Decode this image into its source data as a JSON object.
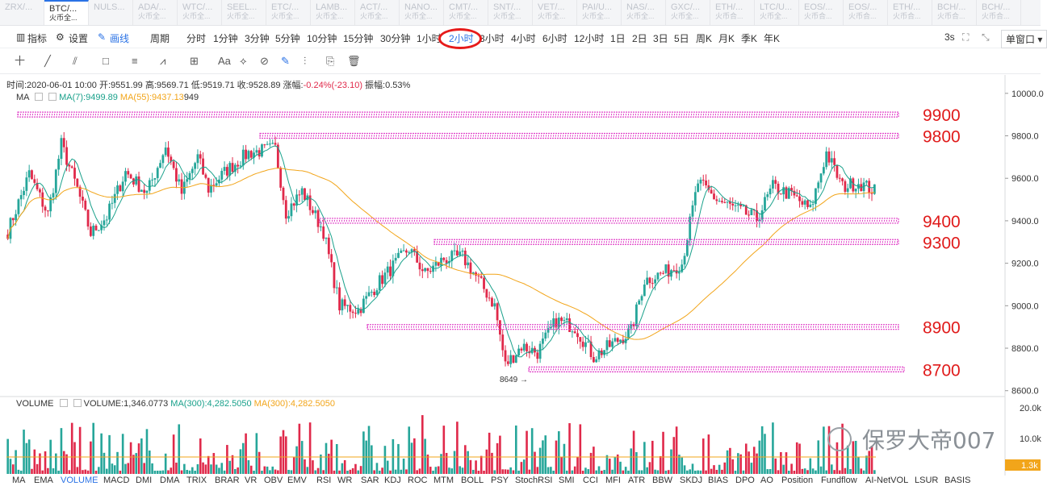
{
  "tickers": [
    {
      "name": "ZRX/...",
      "sub": ""
    },
    {
      "name": "BTC/...",
      "sub": "火币全..."
    },
    {
      "name": "NULS...",
      "sub": ""
    },
    {
      "name": "ADA/...",
      "sub": "火币全..."
    },
    {
      "name": "WTC/...",
      "sub": "火币全..."
    },
    {
      "name": "SEEL...",
      "sub": "火币全..."
    },
    {
      "name": "ETC/...",
      "sub": "火币全..."
    },
    {
      "name": "LAMB...",
      "sub": "火币全..."
    },
    {
      "name": "ACT/...",
      "sub": "火币全..."
    },
    {
      "name": "NANO...",
      "sub": "火币全..."
    },
    {
      "name": "CMT/...",
      "sub": "火币全..."
    },
    {
      "name": "SNT/...",
      "sub": "火币全..."
    },
    {
      "name": "VET/...",
      "sub": "火币全..."
    },
    {
      "name": "PAI/U...",
      "sub": "火币全..."
    },
    {
      "name": "NAS/...",
      "sub": "火币全..."
    },
    {
      "name": "GXC/...",
      "sub": "火币全..."
    },
    {
      "name": "ETH/...",
      "sub": "火币合..."
    },
    {
      "name": "LTC/U...",
      "sub": "火币全..."
    },
    {
      "name": "EOS/...",
      "sub": "火币合..."
    },
    {
      "name": "EOS/...",
      "sub": "火币合..."
    },
    {
      "name": "ETH/...",
      "sub": "火币合..."
    },
    {
      "name": "BCH/...",
      "sub": "火币合..."
    },
    {
      "name": "BCH/...",
      "sub": "火币合..."
    }
  ],
  "toolbar": {
    "indicator": "指标",
    "settings": "设置",
    "draw": "画线",
    "period": "周期",
    "intervals": [
      "分时",
      "1分钟",
      "3分钟",
      "5分钟",
      "10分钟",
      "15分钟",
      "30分钟",
      "1小时",
      "2小时",
      "3小时",
      "4小时",
      "6小时",
      "12小时",
      "1日",
      "2日",
      "3日",
      "5日",
      "周K",
      "月K",
      "季K",
      "年K"
    ],
    "active_interval": "2小时",
    "refresh": "3s",
    "window": "单窗口"
  },
  "drawtools": [
    "十",
    "╱",
    "⫽",
    "□",
    "≡",
    "⩘",
    "⊞",
    "Aa",
    "⟡",
    "⊘",
    "✎",
    "⫶",
    "⎘",
    "🗑"
  ],
  "info": {
    "time": "时间:2020-06-01 10:00",
    "open": "开:9551.99",
    "high": "高:9569.71",
    "low": "低:9519.71",
    "close": "收:9528.89",
    "change_label": "涨幅:",
    "change": "-0.24%(-23.10)",
    "amp": "振幅:0.53%"
  },
  "ma_legend": {
    "name": "MA",
    "ma7": "MA(7):9499.89",
    "ma55": "MA(55):9437.13",
    "extra": "949"
  },
  "price_axis": {
    "ticks": [
      "10000.0",
      "9800.0",
      "9600.0",
      "9400.0",
      "9200.0",
      "9000.0",
      "8800.0",
      "8600.0"
    ]
  },
  "levels": [
    {
      "price": 9900,
      "label": "9900"
    },
    {
      "price": 9800,
      "label": "9800"
    },
    {
      "price": 9400,
      "label": "9400"
    },
    {
      "price": 9300,
      "label": "9300"
    },
    {
      "price": 8900,
      "label": "8900"
    },
    {
      "price": 8700,
      "label": "8700"
    }
  ],
  "low_marker": "8649 →",
  "vol_legend": {
    "name": "VOLUME",
    "value": "VOLUME:1,346.0773",
    "ma1": "MA(300):4,282.5050",
    "ma2": "MA(300):4,282.5050"
  },
  "vol_axis": {
    "ticks": [
      "20.0k",
      "10.0k"
    ],
    "current": "1.3k"
  },
  "watermark": "保罗大帝007",
  "bottom_tabs": [
    "MA",
    "EMA",
    "VOLUME",
    "MACD",
    "DMI",
    "DMA",
    "TRIX",
    "BRAR",
    "VR",
    "OBV",
    "EMV",
    "RSI",
    "WR",
    "SAR",
    "KDJ",
    "ROC",
    "MTM",
    "BOLL",
    "PSY",
    "StochRSI",
    "SMI",
    "CCI",
    "MFI",
    "ATR",
    "BBW",
    "SKDJ",
    "BIAS",
    "DPO",
    "AO",
    "Position",
    "Fundflow",
    "AI-NetVOL",
    "LSUR",
    "BASIS"
  ],
  "active_tab": "VOLUME",
  "colors": {
    "up": "#26a69a",
    "down": "#e0294a",
    "ma7": "#1aa18b",
    "ma55": "#f2a51a",
    "level": "#e040c8",
    "label": "#e01a1a",
    "accent": "#2a72e5"
  },
  "chart_data": {
    "type": "candlestick",
    "ylim": [
      8580,
      10060
    ],
    "anchors": [
      [
        0,
        9350
      ],
      [
        8,
        9620
      ],
      [
        15,
        9430
      ],
      [
        20,
        9760
      ],
      [
        26,
        9550
      ],
      [
        31,
        9340
      ],
      [
        37,
        9420
      ],
      [
        44,
        9630
      ],
      [
        52,
        9530
      ],
      [
        59,
        9750
      ],
      [
        65,
        9530
      ],
      [
        71,
        9700
      ],
      [
        75,
        9550
      ],
      [
        82,
        9640
      ],
      [
        90,
        9720
      ],
      [
        95,
        9730
      ],
      [
        100,
        9740
      ],
      [
        104,
        9440
      ],
      [
        110,
        9540
      ],
      [
        118,
        9350
      ],
      [
        124,
        9000
      ],
      [
        131,
        8980
      ],
      [
        138,
        9100
      ],
      [
        145,
        9200
      ],
      [
        150,
        9270
      ],
      [
        156,
        9150
      ],
      [
        163,
        9220
      ],
      [
        170,
        9230
      ],
      [
        176,
        9120
      ],
      [
        182,
        9000
      ],
      [
        186,
        8720
      ],
      [
        192,
        8810
      ],
      [
        198,
        8780
      ],
      [
        205,
        8930
      ],
      [
        212,
        8900
      ],
      [
        219,
        8760
      ],
      [
        226,
        8820
      ],
      [
        233,
        8880
      ],
      [
        238,
        9120
      ],
      [
        246,
        9160
      ],
      [
        252,
        9200
      ],
      [
        258,
        9580
      ],
      [
        265,
        9500
      ],
      [
        273,
        9450
      ],
      [
        280,
        9410
      ],
      [
        286,
        9560
      ],
      [
        293,
        9520
      ],
      [
        300,
        9450
      ],
      [
        306,
        9720
      ],
      [
        312,
        9560
      ],
      [
        318,
        9580
      ],
      [
        324,
        9540
      ]
    ]
  }
}
